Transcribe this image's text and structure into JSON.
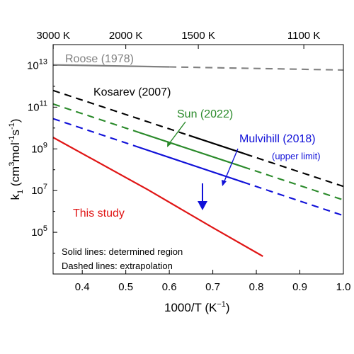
{
  "chart_data": {
    "type": "line",
    "xlabel": "1000/T (K",
    "xlabel_sup": "−1",
    "xlabel_end": ")",
    "ylabel_parts": [
      "k",
      "1",
      " (cm",
      "3",
      "mol",
      "-1",
      "s",
      "-1",
      ")"
    ],
    "xlim": [
      0.333,
      1.0
    ],
    "ylim": [
      3.0,
      14.0
    ],
    "y_log_scale": true,
    "x_ticks": [
      0.4,
      0.5,
      0.6,
      0.7,
      0.8,
      0.9,
      1.0
    ],
    "x_tick_labels": [
      "0.4",
      "0.5",
      "0.6",
      "0.7",
      "0.8",
      "0.9",
      "1.0"
    ],
    "y_ticks_exp": [
      5,
      7,
      9,
      11,
      13
    ],
    "y_tick_base": "10",
    "y_tick_labels": [
      "5",
      "7",
      "9",
      "11",
      "13"
    ],
    "top_axis_ticks_K": [
      3000,
      2000,
      1500,
      1100
    ],
    "top_axis_labels": [
      "3000 K",
      "2000 K",
      "1500 K",
      "1100 K"
    ],
    "series": [
      {
        "name": "Roose (1978)",
        "color": "#808080",
        "solid_x": [
          0.333,
          0.6
        ],
        "dashed_x": [
          0.6,
          1.0
        ],
        "log10_k": [
          [
            0.333,
            13.03
          ],
          [
            1.0,
            12.78
          ]
        ]
      },
      {
        "name": "Kosarev (2007)",
        "color": "#000000",
        "solid_x": [
          0.645,
          0.775
        ],
        "dashed_x": [
          [
            0.333,
            0.645
          ],
          [
            0.775,
            1.0
          ]
        ],
        "log10_k": [
          [
            0.333,
            11.8
          ],
          [
            1.0,
            7.2
          ]
        ]
      },
      {
        "name": "Sun (2022)",
        "color": "#2a8a2a",
        "solid_x": [
          0.53,
          0.77
        ],
        "dashed_x": [
          [
            0.333,
            0.53
          ],
          [
            0.77,
            1.0
          ]
        ],
        "log10_k": [
          [
            0.333,
            11.15
          ],
          [
            1.0,
            6.55
          ]
        ]
      },
      {
        "name": "Mulvihill (2018)",
        "annotation": "(upper limit)",
        "color": "#1010d8",
        "solid_x": [
          0.53,
          0.77
        ],
        "dashed_x": [
          [
            0.333,
            0.53
          ],
          [
            0.77,
            1.0
          ]
        ],
        "log10_k": [
          [
            0.333,
            10.45
          ],
          [
            1.0,
            5.8
          ]
        ]
      },
      {
        "name": "This study",
        "color": "#e01515",
        "solid_x": [
          0.333,
          0.815
        ],
        "log10_k": [
          [
            0.333,
            9.55
          ],
          [
            0.55,
            7.05
          ],
          [
            0.7,
            5.22
          ],
          [
            0.815,
            3.85
          ]
        ]
      }
    ],
    "annotations": [
      "Solid lines: determined region",
      "Dashed lines: extrapolation"
    ]
  }
}
